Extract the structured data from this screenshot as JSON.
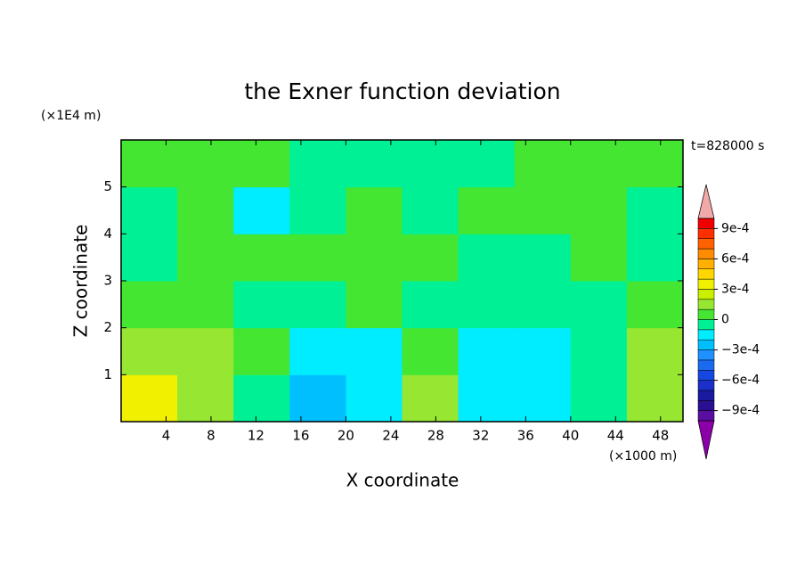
{
  "chart_data": {
    "type": "contour",
    "title": "the Exner function deviation",
    "xlabel": "X coordinate",
    "ylabel": "Z coordinate",
    "x_unit": "(×1000 m)",
    "y_unit": "(×1E4 m)",
    "annotation": "t=828000 s",
    "xlim": [
      0,
      50
    ],
    "ylim": [
      0,
      6
    ],
    "xticks": [
      4,
      8,
      12,
      16,
      20,
      24,
      28,
      32,
      36,
      40,
      44,
      48
    ],
    "yticks": [
      1,
      2,
      3,
      4,
      5
    ],
    "x": [
      2.5,
      7.5,
      12.5,
      17.5,
      22.5,
      27.5,
      32.5,
      37.5,
      42.5,
      47.5
    ],
    "z": [
      0.5,
      1.5,
      2.5,
      3.5,
      4.5,
      5.5
    ],
    "values": [
      [
        0.00035,
        0.00015,
        -5e-05,
        -0.00025,
        -0.00015,
        0.00015,
        -0.00015,
        -0.00015,
        -5e-05,
        0.00015
      ],
      [
        0.00015,
        0.00015,
        5e-05,
        -0.00015,
        -0.00015,
        5e-05,
        -0.00015,
        -0.00015,
        -5e-05,
        0.00015
      ],
      [
        5e-05,
        5e-05,
        -5e-05,
        -5e-05,
        5e-05,
        -5e-05,
        -5e-05,
        -5e-05,
        -5e-05,
        5e-05
      ],
      [
        -5e-05,
        5e-05,
        5e-05,
        5e-05,
        5e-05,
        5e-05,
        -5e-05,
        -5e-05,
        5e-05,
        -5e-05
      ],
      [
        -5e-05,
        5e-05,
        -0.00015,
        -5e-05,
        5e-05,
        -5e-05,
        5e-05,
        5e-05,
        5e-05,
        -5e-05
      ],
      [
        5e-05,
        5e-05,
        5e-05,
        -5e-05,
        -5e-05,
        -5e-05,
        -5e-05,
        5e-05,
        5e-05,
        5e-05
      ]
    ],
    "levels": [
      -0.001,
      -0.0009,
      -0.0008,
      -0.0007,
      -0.0006,
      -0.0005,
      -0.0004,
      -0.0003,
      -0.0002,
      -0.0001,
      0,
      0.0001,
      0.0002,
      0.0003,
      0.0004,
      0.0005,
      0.0006,
      0.0007,
      0.0008,
      0.0009,
      0.001
    ],
    "colors": [
      "#5a0fa0",
      "#2a1090",
      "#1a1aa0",
      "#1a30c8",
      "#1448e0",
      "#1a6af0",
      "#1e90ff",
      "#00bfff",
      "#00ecff",
      "#00f096",
      "#44e632",
      "#96e632",
      "#c8f000",
      "#f0f000",
      "#ffd700",
      "#ffb000",
      "#ff8c00",
      "#ff6000",
      "#ff3000",
      "#f00000"
    ],
    "under_color": "#8c00a8",
    "over_color": "#f0a8a8",
    "colorbar_ticks": [
      {
        "value": 0.0009,
        "label": "9e-4"
      },
      {
        "value": 0.0006,
        "label": "6e-4"
      },
      {
        "value": 0.0003,
        "label": "3e-4"
      },
      0,
      {
        "value": -0.0003,
        "label": "−3e-4"
      },
      {
        "value": -0.0006,
        "label": "−6e-4"
      },
      {
        "value": -0.0009,
        "label": "−9e-4"
      }
    ]
  }
}
